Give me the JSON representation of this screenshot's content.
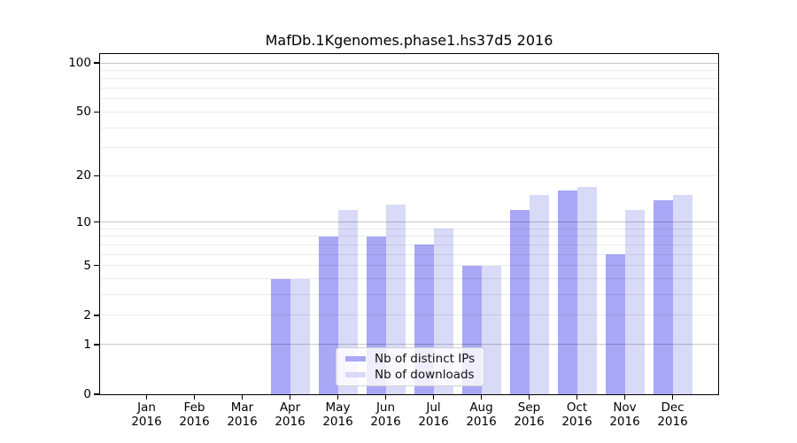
{
  "chart_data": {
    "type": "bar",
    "title": "MafDb.1Kgenomes.phase1.hs37d5 2016",
    "categories": [
      {
        "month": "Jan",
        "year": "2016"
      },
      {
        "month": "Feb",
        "year": "2016"
      },
      {
        "month": "Mar",
        "year": "2016"
      },
      {
        "month": "Apr",
        "year": "2016"
      },
      {
        "month": "May",
        "year": "2016"
      },
      {
        "month": "Jun",
        "year": "2016"
      },
      {
        "month": "Jul",
        "year": "2016"
      },
      {
        "month": "Aug",
        "year": "2016"
      },
      {
        "month": "Sep",
        "year": "2016"
      },
      {
        "month": "Oct",
        "year": "2016"
      },
      {
        "month": "Nov",
        "year": "2016"
      },
      {
        "month": "Dec",
        "year": "2016"
      }
    ],
    "series": [
      {
        "name": "Nb of distinct IPs",
        "color": "#a8a8f6",
        "values": [
          0,
          0,
          0,
          4,
          8,
          8,
          7,
          5,
          12,
          16,
          6,
          14
        ]
      },
      {
        "name": "Nb of downloads",
        "color": "#d9d9f8",
        "values": [
          0,
          0,
          0,
          4,
          12,
          13,
          9,
          5,
          15,
          17,
          12,
          15
        ]
      }
    ],
    "yscale": "log10(1+v)",
    "ylim": [
      0,
      113
    ],
    "yticks": [
      0,
      1,
      2,
      5,
      10,
      20,
      50,
      100
    ],
    "grid": {
      "major": [
        1,
        10,
        100
      ],
      "minor": [
        2,
        3,
        4,
        5,
        6,
        7,
        8,
        9,
        20,
        30,
        40,
        50,
        60,
        70,
        80,
        90
      ]
    },
    "legend_position": "bottom-center",
    "xlabel": "",
    "ylabel": ""
  }
}
